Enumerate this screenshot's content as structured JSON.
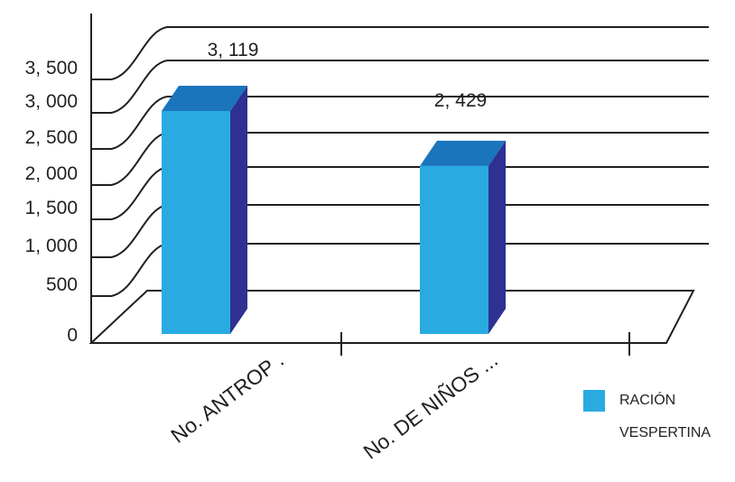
{
  "chart_data": {
    "type": "bar",
    "categories": [
      "No. ANTROP .",
      "No. DE NIÑOS ..."
    ],
    "series": [
      {
        "name": "RACIÓN VESPERTINA",
        "values": [
          3119,
          2429
        ]
      }
    ],
    "data_labels": [
      "3, 119",
      "2, 429"
    ],
    "y_ticks": [
      {
        "value": 0,
        "label": "0"
      },
      {
        "value": 500,
        "label": "500"
      },
      {
        "value": 1000,
        "label": "1, 000"
      },
      {
        "value": 1500,
        "label": "1, 500"
      },
      {
        "value": 2000,
        "label": "2, 000"
      },
      {
        "value": 2500,
        "label": "2, 500"
      },
      {
        "value": 3000,
        "label": "3, 000"
      },
      {
        "value": 3500,
        "label": "3, 500"
      }
    ],
    "ylim": [
      0,
      3500
    ],
    "grid": true,
    "three_d": true,
    "legend_position": "right",
    "colors": {
      "bar_front": "#29abe2",
      "bar_top": "#1b75bc",
      "bar_side": "#2e3192",
      "line": "#231f20"
    }
  }
}
